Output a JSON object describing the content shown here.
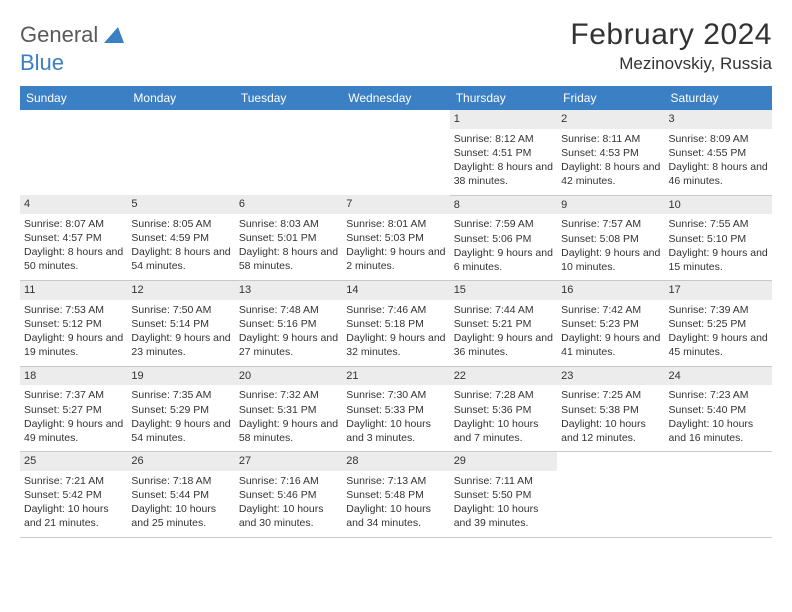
{
  "logo": {
    "part1": "General",
    "part2": "Blue",
    "tri_color": "#3b7fc4"
  },
  "title": "February 2024",
  "location": "Mezinovskiy, Russia",
  "colors": {
    "header_bg": "#3b7fc4",
    "header_fg": "#ffffff",
    "daynum_bg": "#ececec",
    "border": "#c8c8c8",
    "text": "#333333",
    "bg": "#ffffff"
  },
  "typography": {
    "title_fontsize": 30,
    "location_fontsize": 17,
    "header_fontsize": 12,
    "cell_fontsize": 10.5
  },
  "day_headers": [
    "Sunday",
    "Monday",
    "Tuesday",
    "Wednesday",
    "Thursday",
    "Friday",
    "Saturday"
  ],
  "weeks": [
    [
      null,
      null,
      null,
      null,
      {
        "n": "1",
        "sunrise": "8:12 AM",
        "sunset": "4:51 PM",
        "daylight": "8 hours and 38 minutes."
      },
      {
        "n": "2",
        "sunrise": "8:11 AM",
        "sunset": "4:53 PM",
        "daylight": "8 hours and 42 minutes."
      },
      {
        "n": "3",
        "sunrise": "8:09 AM",
        "sunset": "4:55 PM",
        "daylight": "8 hours and 46 minutes."
      }
    ],
    [
      {
        "n": "4",
        "sunrise": "8:07 AM",
        "sunset": "4:57 PM",
        "daylight": "8 hours and 50 minutes."
      },
      {
        "n": "5",
        "sunrise": "8:05 AM",
        "sunset": "4:59 PM",
        "daylight": "8 hours and 54 minutes."
      },
      {
        "n": "6",
        "sunrise": "8:03 AM",
        "sunset": "5:01 PM",
        "daylight": "8 hours and 58 minutes."
      },
      {
        "n": "7",
        "sunrise": "8:01 AM",
        "sunset": "5:03 PM",
        "daylight": "9 hours and 2 minutes."
      },
      {
        "n": "8",
        "sunrise": "7:59 AM",
        "sunset": "5:06 PM",
        "daylight": "9 hours and 6 minutes."
      },
      {
        "n": "9",
        "sunrise": "7:57 AM",
        "sunset": "5:08 PM",
        "daylight": "9 hours and 10 minutes."
      },
      {
        "n": "10",
        "sunrise": "7:55 AM",
        "sunset": "5:10 PM",
        "daylight": "9 hours and 15 minutes."
      }
    ],
    [
      {
        "n": "11",
        "sunrise": "7:53 AM",
        "sunset": "5:12 PM",
        "daylight": "9 hours and 19 minutes."
      },
      {
        "n": "12",
        "sunrise": "7:50 AM",
        "sunset": "5:14 PM",
        "daylight": "9 hours and 23 minutes."
      },
      {
        "n": "13",
        "sunrise": "7:48 AM",
        "sunset": "5:16 PM",
        "daylight": "9 hours and 27 minutes."
      },
      {
        "n": "14",
        "sunrise": "7:46 AM",
        "sunset": "5:18 PM",
        "daylight": "9 hours and 32 minutes."
      },
      {
        "n": "15",
        "sunrise": "7:44 AM",
        "sunset": "5:21 PM",
        "daylight": "9 hours and 36 minutes."
      },
      {
        "n": "16",
        "sunrise": "7:42 AM",
        "sunset": "5:23 PM",
        "daylight": "9 hours and 41 minutes."
      },
      {
        "n": "17",
        "sunrise": "7:39 AM",
        "sunset": "5:25 PM",
        "daylight": "9 hours and 45 minutes."
      }
    ],
    [
      {
        "n": "18",
        "sunrise": "7:37 AM",
        "sunset": "5:27 PM",
        "daylight": "9 hours and 49 minutes."
      },
      {
        "n": "19",
        "sunrise": "7:35 AM",
        "sunset": "5:29 PM",
        "daylight": "9 hours and 54 minutes."
      },
      {
        "n": "20",
        "sunrise": "7:32 AM",
        "sunset": "5:31 PM",
        "daylight": "9 hours and 58 minutes."
      },
      {
        "n": "21",
        "sunrise": "7:30 AM",
        "sunset": "5:33 PM",
        "daylight": "10 hours and 3 minutes."
      },
      {
        "n": "22",
        "sunrise": "7:28 AM",
        "sunset": "5:36 PM",
        "daylight": "10 hours and 7 minutes."
      },
      {
        "n": "23",
        "sunrise": "7:25 AM",
        "sunset": "5:38 PM",
        "daylight": "10 hours and 12 minutes."
      },
      {
        "n": "24",
        "sunrise": "7:23 AM",
        "sunset": "5:40 PM",
        "daylight": "10 hours and 16 minutes."
      }
    ],
    [
      {
        "n": "25",
        "sunrise": "7:21 AM",
        "sunset": "5:42 PM",
        "daylight": "10 hours and 21 minutes."
      },
      {
        "n": "26",
        "sunrise": "7:18 AM",
        "sunset": "5:44 PM",
        "daylight": "10 hours and 25 minutes."
      },
      {
        "n": "27",
        "sunrise": "7:16 AM",
        "sunset": "5:46 PM",
        "daylight": "10 hours and 30 minutes."
      },
      {
        "n": "28",
        "sunrise": "7:13 AM",
        "sunset": "5:48 PM",
        "daylight": "10 hours and 34 minutes."
      },
      {
        "n": "29",
        "sunrise": "7:11 AM",
        "sunset": "5:50 PM",
        "daylight": "10 hours and 39 minutes."
      },
      null,
      null
    ]
  ],
  "labels": {
    "sunrise": "Sunrise:",
    "sunset": "Sunset:",
    "daylight": "Daylight:"
  }
}
